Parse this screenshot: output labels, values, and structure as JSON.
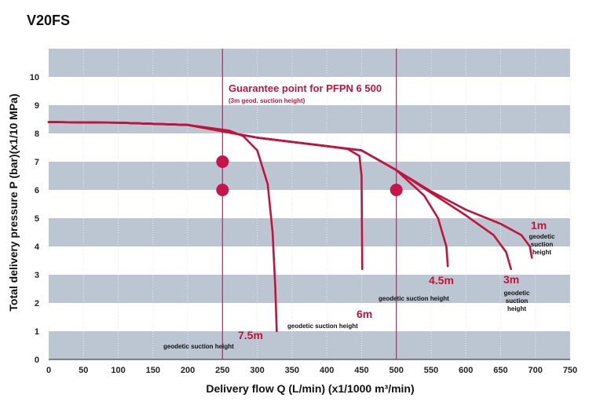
{
  "title": "V20FS",
  "chart_data": {
    "type": "line",
    "xlabel": "Delivery flow Q (L/min) (x1/1000 m³/min)",
    "ylabel": "Total delivery pressure P (bar)(x1/10 MPa)",
    "xlim": [
      0,
      750
    ],
    "ylim": [
      0,
      11
    ],
    "x_ticks": [
      0,
      50,
      100,
      150,
      200,
      250,
      300,
      350,
      400,
      450,
      500,
      550,
      600,
      650,
      700,
      750
    ],
    "y_ticks": [
      0,
      1,
      2,
      3,
      4,
      5,
      6,
      7,
      8,
      9,
      10
    ],
    "grid": "horizontal-bands",
    "colors": {
      "curve": "#c0143c",
      "band": "#bcc6d2",
      "guide": "#a0306a"
    },
    "guide_lines_x": [
      250,
      500
    ],
    "guarantee_label": "Guarantee point for PFPN 6 500",
    "guarantee_sub": "(3m geod. suction height)",
    "series": [
      {
        "label": "7.5m",
        "sub": "geodetic suction height",
        "points": [
          [
            0,
            8.4
          ],
          [
            100,
            8.38
          ],
          [
            200,
            8.3
          ],
          [
            260,
            8.1
          ],
          [
            280,
            7.9
          ],
          [
            300,
            7.4
          ],
          [
            315,
            6.2
          ],
          [
            322,
            4.5
          ],
          [
            326,
            2.5
          ],
          [
            328,
            1.0
          ]
        ]
      },
      {
        "label": "6m",
        "sub": "geodetic suction height",
        "points": [
          [
            0,
            8.4
          ],
          [
            100,
            8.38
          ],
          [
            200,
            8.3
          ],
          [
            300,
            7.85
          ],
          [
            350,
            7.7
          ],
          [
            400,
            7.55
          ],
          [
            430,
            7.45
          ],
          [
            447,
            7.2
          ],
          [
            450,
            6.5
          ],
          [
            451,
            3.2
          ]
        ]
      },
      {
        "label": "4.5m",
        "sub": "geodetic suction height",
        "points": [
          [
            0,
            8.4
          ],
          [
            100,
            8.38
          ],
          [
            200,
            8.3
          ],
          [
            300,
            7.85
          ],
          [
            400,
            7.55
          ],
          [
            450,
            7.4
          ],
          [
            500,
            6.7
          ],
          [
            540,
            5.8
          ],
          [
            560,
            5.0
          ],
          [
            572,
            4.0
          ],
          [
            574,
            3.3
          ]
        ]
      },
      {
        "label": "3m",
        "sub": "geodetic\nsuction\nheight",
        "points": [
          [
            0,
            8.4
          ],
          [
            100,
            8.38
          ],
          [
            200,
            8.3
          ],
          [
            300,
            7.85
          ],
          [
            400,
            7.55
          ],
          [
            450,
            7.4
          ],
          [
            500,
            6.7
          ],
          [
            550,
            5.9
          ],
          [
            600,
            5.1
          ],
          [
            640,
            4.4
          ],
          [
            658,
            3.8
          ],
          [
            665,
            3.2
          ]
        ]
      },
      {
        "label": "1m",
        "sub": "geodetic\nsuction\nheight",
        "points": [
          [
            0,
            8.4
          ],
          [
            100,
            8.38
          ],
          [
            200,
            8.3
          ],
          [
            300,
            7.85
          ],
          [
            400,
            7.55
          ],
          [
            450,
            7.4
          ],
          [
            500,
            6.7
          ],
          [
            550,
            5.95
          ],
          [
            600,
            5.3
          ],
          [
            650,
            4.8
          ],
          [
            680,
            4.4
          ],
          [
            692,
            4.0
          ],
          [
            695,
            3.6
          ]
        ]
      }
    ],
    "markers": [
      [
        250,
        7.0
      ],
      [
        250,
        6.0
      ],
      [
        500,
        6.0
      ]
    ]
  }
}
